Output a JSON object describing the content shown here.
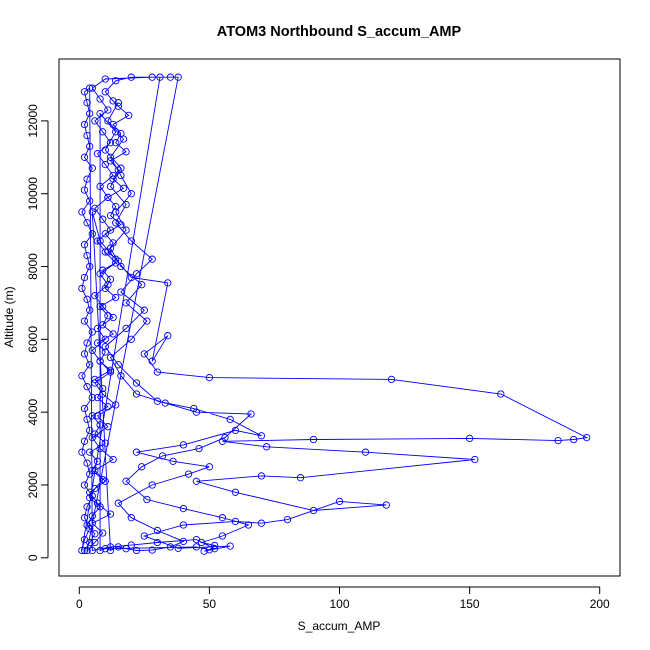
{
  "chart_data": {
    "type": "scatter",
    "title": "ATOM3 Northbound S_accum_AMP",
    "xlabel": "S_accum_AMP",
    "ylabel": "Altitude (m)",
    "xlim": [
      -7.8,
      207.8
    ],
    "ylim": [
      -500,
      13700
    ],
    "xticks": [
      0,
      50,
      100,
      150,
      200
    ],
    "yticks": [
      0,
      2000,
      4000,
      6000,
      8000,
      10000,
      12000
    ],
    "grid": false,
    "series_color": "#0000ff",
    "marker": "open-circle",
    "connected": true,
    "series": [
      {
        "points": [
          [
            2,
            200
          ],
          [
            4,
            420
          ],
          [
            6,
            660
          ],
          [
            3,
            900
          ],
          [
            5,
            1150
          ],
          [
            8,
            1400
          ],
          [
            4,
            1650
          ],
          [
            6,
            1900
          ],
          [
            9,
            2150
          ],
          [
            5,
            2400
          ],
          [
            7,
            2650
          ],
          [
            4,
            2900
          ],
          [
            10,
            3150
          ],
          [
            6,
            3400
          ],
          [
            8,
            3650
          ],
          [
            5,
            3900
          ],
          [
            11,
            4150
          ],
          [
            7,
            4400
          ],
          [
            9,
            4650
          ],
          [
            6,
            4900
          ],
          [
            12,
            5150
          ],
          [
            8,
            5400
          ],
          [
            10,
            5650
          ],
          [
            7,
            5900
          ],
          [
            13,
            6150
          ],
          [
            9,
            6400
          ],
          [
            11,
            6650
          ],
          [
            8,
            6900
          ],
          [
            14,
            7150
          ],
          [
            10,
            7400
          ],
          [
            12,
            7650
          ],
          [
            9,
            7900
          ],
          [
            15,
            8150
          ],
          [
            11,
            8400
          ],
          [
            13,
            8650
          ],
          [
            10,
            8900
          ],
          [
            16,
            9150
          ],
          [
            12,
            9400
          ],
          [
            14,
            9650
          ],
          [
            11,
            9900
          ],
          [
            17,
            10150
          ],
          [
            13,
            10400
          ],
          [
            15,
            10650
          ],
          [
            12,
            10900
          ],
          [
            18,
            11150
          ],
          [
            14,
            11400
          ],
          [
            16,
            11650
          ],
          [
            13,
            11900
          ],
          [
            19,
            12150
          ],
          [
            15,
            12400
          ],
          [
            13,
            12550
          ],
          [
            10,
            12800
          ],
          [
            14,
            13100
          ],
          [
            20,
            13200
          ],
          [
            35,
            13200
          ],
          [
            38,
            13200
          ],
          [
            3,
            200
          ],
          [
            6,
            420
          ],
          [
            9,
            680
          ],
          [
            5,
            950
          ],
          [
            12,
            1200
          ],
          [
            7,
            1500
          ],
          [
            4,
            1800
          ],
          [
            10,
            2100
          ],
          [
            6,
            2400
          ],
          [
            13,
            2700
          ],
          [
            8,
            3000
          ],
          [
            5,
            3300
          ],
          [
            11,
            3600
          ],
          [
            7,
            3900
          ],
          [
            14,
            4200
          ],
          [
            9,
            4500
          ],
          [
            6,
            4800
          ],
          [
            12,
            5100
          ],
          [
            8,
            5400
          ],
          [
            5,
            5700
          ],
          [
            10,
            6000
          ],
          [
            7,
            6300
          ],
          [
            13,
            6600
          ],
          [
            9,
            6900
          ],
          [
            6,
            7200
          ],
          [
            11,
            7500
          ],
          [
            8,
            7800
          ],
          [
            14,
            8100
          ],
          [
            10,
            8400
          ],
          [
            7,
            8700
          ],
          [
            12,
            9000
          ],
          [
            9,
            9300
          ],
          [
            6,
            9600
          ],
          [
            11,
            9900
          ],
          [
            8,
            10200
          ],
          [
            13,
            10500
          ],
          [
            10,
            10800
          ],
          [
            7,
            11100
          ],
          [
            12,
            11400
          ],
          [
            9,
            11700
          ],
          [
            6,
            12000
          ],
          [
            11,
            12300
          ],
          [
            8,
            12600
          ],
          [
            5,
            12900
          ],
          [
            10,
            13150
          ],
          [
            28,
            13200
          ],
          [
            31,
            13200
          ],
          [
            1,
            200
          ],
          [
            2,
            500
          ],
          [
            4,
            800
          ],
          [
            2,
            1100
          ],
          [
            3,
            1400
          ],
          [
            5,
            1700
          ],
          [
            2,
            2000
          ],
          [
            4,
            2300
          ],
          [
            3,
            2600
          ],
          [
            1,
            2900
          ],
          [
            2,
            3200
          ],
          [
            4,
            3500
          ],
          [
            3,
            3800
          ],
          [
            2,
            4100
          ],
          [
            5,
            4400
          ],
          [
            3,
            4700
          ],
          [
            1,
            5000
          ],
          [
            4,
            5300
          ],
          [
            2,
            5600
          ],
          [
            3,
            5900
          ],
          [
            5,
            6200
          ],
          [
            2,
            6500
          ],
          [
            4,
            6800
          ],
          [
            3,
            7100
          ],
          [
            1,
            7400
          ],
          [
            2,
            7700
          ],
          [
            4,
            8000
          ],
          [
            3,
            8300
          ],
          [
            2,
            8600
          ],
          [
            5,
            8900
          ],
          [
            3,
            9200
          ],
          [
            1,
            9500
          ],
          [
            4,
            9800
          ],
          [
            2,
            10100
          ],
          [
            3,
            10400
          ],
          [
            5,
            10700
          ],
          [
            2,
            11000
          ],
          [
            4,
            11300
          ],
          [
            3,
            11600
          ],
          [
            2,
            11900
          ],
          [
            4,
            12200
          ],
          [
            3,
            12500
          ],
          [
            2,
            12800
          ],
          [
            4,
            12900
          ],
          [
            5,
            200
          ],
          [
            12,
            300
          ],
          [
            20,
            350
          ],
          [
            30,
            420
          ],
          [
            45,
            500
          ],
          [
            52,
            250
          ],
          [
            48,
            180
          ],
          [
            58,
            320
          ],
          [
            38,
            260
          ],
          [
            25,
            600
          ],
          [
            40,
            900
          ],
          [
            60,
            1000
          ],
          [
            70,
            950
          ],
          [
            80,
            1050
          ],
          [
            100,
            1550
          ],
          [
            118,
            1450
          ],
          [
            90,
            1300
          ],
          [
            60,
            1800
          ],
          [
            45,
            2100
          ],
          [
            70,
            2250
          ],
          [
            85,
            2200
          ],
          [
            152,
            2700
          ],
          [
            110,
            2900
          ],
          [
            72,
            3050
          ],
          [
            55,
            3200
          ],
          [
            90,
            3250
          ],
          [
            150,
            3280
          ],
          [
            184,
            3220
          ],
          [
            190,
            3250
          ],
          [
            195,
            3300
          ],
          [
            162,
            4500
          ],
          [
            120,
            4900
          ],
          [
            50,
            4950
          ],
          [
            30,
            5100
          ],
          [
            25,
            5600
          ],
          [
            34,
            6100
          ],
          [
            28,
            5400
          ],
          [
            34,
            7550
          ],
          [
            20,
            7700
          ],
          [
            14,
            8200
          ],
          [
            8,
            8700
          ],
          [
            5,
            9500
          ],
          [
            12,
            200
          ],
          [
            15,
            300
          ],
          [
            18,
            250
          ],
          [
            22,
            200
          ],
          [
            28,
            210
          ],
          [
            35,
            300
          ],
          [
            40,
            450
          ],
          [
            30,
            750
          ],
          [
            20,
            1100
          ],
          [
            15,
            1500
          ],
          [
            28,
            2000
          ],
          [
            42,
            2300
          ],
          [
            50,
            2500
          ],
          [
            36,
            2650
          ],
          [
            22,
            2900
          ],
          [
            40,
            3100
          ],
          [
            60,
            3500
          ],
          [
            70,
            3350
          ],
          [
            58,
            3800
          ],
          [
            44,
            4100
          ],
          [
            30,
            4300
          ],
          [
            22,
            4800
          ],
          [
            15,
            5300
          ],
          [
            10,
            5800
          ],
          [
            18,
            6300
          ],
          [
            25,
            6800
          ],
          [
            16,
            7300
          ],
          [
            22,
            7800
          ],
          [
            28,
            8200
          ],
          [
            20,
            8700
          ],
          [
            14,
            9200
          ],
          [
            18,
            9700
          ],
          [
            12,
            10200
          ],
          [
            16,
            10700
          ],
          [
            10,
            11200
          ],
          [
            14,
            11700
          ],
          [
            8,
            12200
          ],
          [
            8,
            200
          ],
          [
            10,
            250
          ],
          [
            45,
            300
          ],
          [
            50,
            220
          ],
          [
            52,
            340
          ],
          [
            47,
            420
          ],
          [
            55,
            600
          ],
          [
            65,
            900
          ],
          [
            55,
            1100
          ],
          [
            40,
            1350
          ],
          [
            26,
            1600
          ],
          [
            18,
            2100
          ],
          [
            24,
            2500
          ],
          [
            32,
            2800
          ],
          [
            46,
            3000
          ],
          [
            56,
            3300
          ],
          [
            66,
            3950
          ],
          [
            45,
            4000
          ],
          [
            33,
            4250
          ],
          [
            22,
            4500
          ],
          [
            16,
            5000
          ],
          [
            12,
            5500
          ],
          [
            20,
            6000
          ],
          [
            26,
            6500
          ],
          [
            18,
            7000
          ],
          [
            24,
            7500
          ],
          [
            16,
            8000
          ],
          [
            12,
            8500
          ],
          [
            18,
            9000
          ],
          [
            14,
            9500
          ],
          [
            20,
            10000
          ],
          [
            16,
            10500
          ],
          [
            12,
            11000
          ],
          [
            17,
            11500
          ],
          [
            11,
            12000
          ],
          [
            15,
            12500
          ]
        ]
      }
    ]
  }
}
